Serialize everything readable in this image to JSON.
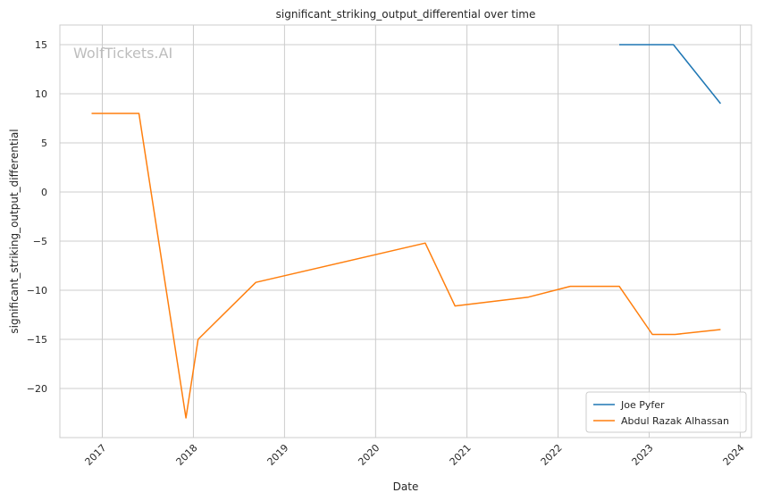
{
  "chart_data": {
    "type": "line",
    "title": "significant_striking_output_differential over time",
    "xlabel": "Date",
    "ylabel": "significant_striking_output_differential",
    "watermark": "WolfTickets.AI",
    "xlim": [
      "2016-07-15",
      "2024-02-15"
    ],
    "ylim": [
      -25,
      17
    ],
    "x_ticks": [
      "2017",
      "2018",
      "2019",
      "2020",
      "2021",
      "2022",
      "2023",
      "2024"
    ],
    "y_ticks": [
      -20,
      -15,
      -10,
      -5,
      0,
      5,
      10,
      15
    ],
    "y_tick_labels": [
      "−20",
      "−15",
      "−10",
      "−5",
      "0",
      "5",
      "10",
      "15"
    ],
    "grid": true,
    "legend_position": "bottom-right",
    "series": [
      {
        "name": "Joe Pyfer",
        "color": "#1f77b4",
        "points": [
          {
            "x": "2022-09-03",
            "y": 15
          },
          {
            "x": "2023-04-08",
            "y": 15
          },
          {
            "x": "2023-10-14",
            "y": 9
          }
        ]
      },
      {
        "name": "Abdul Razak Alhassan",
        "color": "#ff7f0e",
        "points": [
          {
            "x": "2016-11-19",
            "y": 8
          },
          {
            "x": "2017-05-28",
            "y": 8
          },
          {
            "x": "2017-12-02",
            "y": -23
          },
          {
            "x": "2018-01-20",
            "y": -15
          },
          {
            "x": "2018-09-08",
            "y": -9.2
          },
          {
            "x": "2020-07-18",
            "y": -5.2
          },
          {
            "x": "2020-11-14",
            "y": -11.6
          },
          {
            "x": "2021-09-04",
            "y": -10.7
          },
          {
            "x": "2022-02-19",
            "y": -9.6
          },
          {
            "x": "2022-09-03",
            "y": -9.6
          },
          {
            "x": "2023-01-14",
            "y": -14.5
          },
          {
            "x": "2023-04-15",
            "y": -14.5
          },
          {
            "x": "2023-10-14",
            "y": -14
          }
        ]
      }
    ]
  }
}
